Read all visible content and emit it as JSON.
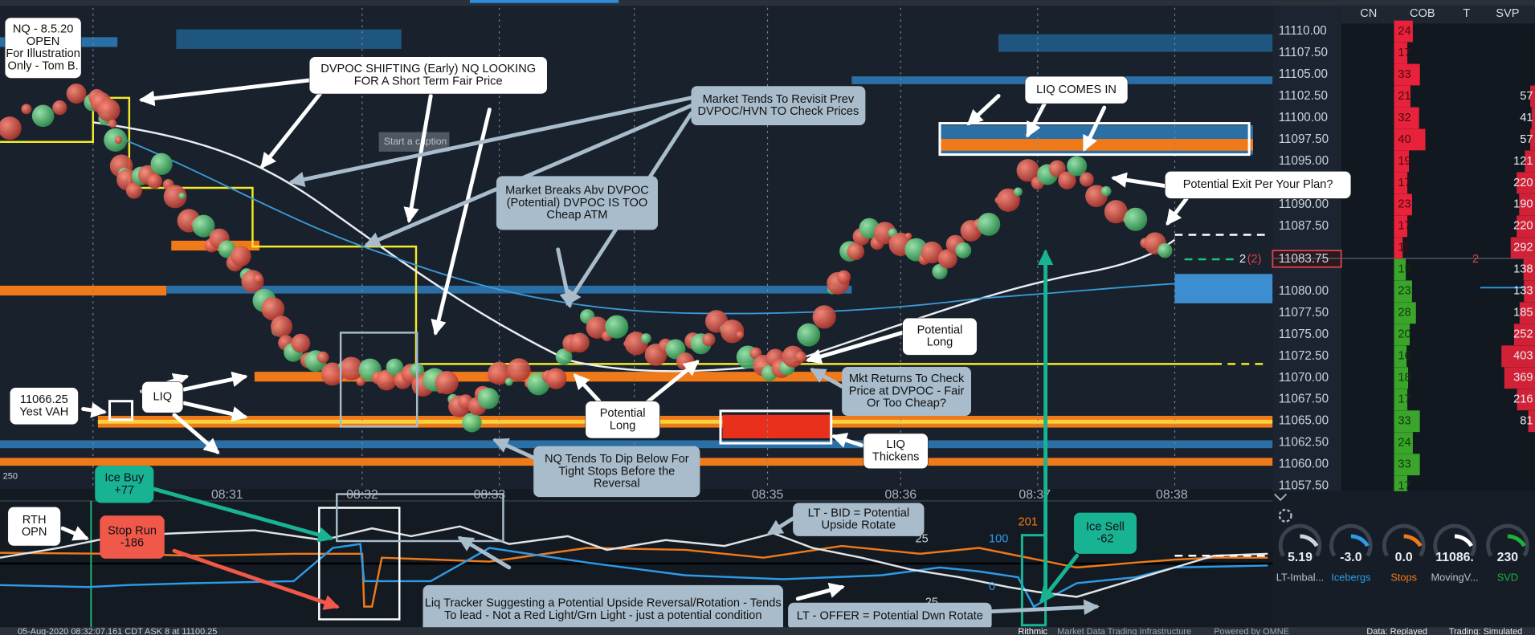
{
  "annotations": [
    {
      "lines": [
        "NQ - 8.5.20",
        "OPEN",
        "For Illustration",
        "Only - Tom B."
      ]
    },
    {
      "lines": [
        "DVPOC SHIFTING (Early) NQ LOOKING",
        "FOR A Short Term Fair Price"
      ]
    },
    {
      "lines": [
        "Market Tends To Revisit Prev",
        "DVPOC/HVN TO Check Prices"
      ]
    },
    {
      "lines": [
        "LIQ COMES IN"
      ]
    },
    {
      "lines": [
        "Market Breaks Abv DVPOC",
        "(Potential) DVPOC IS TOO",
        "Cheap ATM"
      ]
    },
    {
      "lines": [
        "Potential Exit Per Your Plan?"
      ]
    },
    {
      "lines": [
        "Potential",
        "Long"
      ]
    },
    {
      "lines": [
        "Potential",
        "Long"
      ]
    },
    {
      "lines": [
        "Mkt Returns To Check",
        "Price at DVPOC - Fair",
        "Or Too Cheap?"
      ]
    },
    {
      "lines": [
        "11066.25",
        "Yest VAH"
      ]
    },
    {
      "lines": [
        "LIQ"
      ]
    },
    {
      "lines": [
        "LIQ",
        "Thickens"
      ]
    },
    {
      "lines": [
        "NQ Tends To Dip Below For",
        "Tight Stops Before the",
        "Reversal"
      ]
    },
    {
      "lines": [
        "Ice Buy",
        "+77"
      ]
    },
    {
      "lines": [
        "RTH",
        "OPN"
      ]
    },
    {
      "lines": [
        "Stop Run",
        "-186"
      ]
    },
    {
      "lines": [
        "LT - BID = Potential",
        "Upside Rotate"
      ]
    },
    {
      "lines": [
        "Ice Sell",
        "-62"
      ]
    },
    {
      "lines": [
        "Liq Tracker Suggesting a Potential Upside Reversal/Rotation - Tends",
        "To lead - Not a Red Light/Grn Light - just a potential condition"
      ]
    },
    {
      "lines": [
        "LT - OFFER = Potential Dwn Rotate"
      ]
    }
  ],
  "caption_placeholder": "Start a caption",
  "times": [
    "08:31",
    "08:32",
    "08:33",
    "08:35",
    "08:36",
    "08:37",
    "08:38"
  ],
  "ladder": {
    "headers": [
      "CN",
      "COB",
      "T",
      "SVP"
    ],
    "rows": [
      {
        "price": "11110.00",
        "cob": 24,
        "svp": null
      },
      {
        "price": "11107.50",
        "cob": 17,
        "svp": null
      },
      {
        "price": "11105.00",
        "cob": 33,
        "svp": null
      },
      {
        "price": "11102.50",
        "cob": 21,
        "svp": 57
      },
      {
        "price": "11100.00",
        "cob": 32,
        "svp": 41
      },
      {
        "price": "11097.50",
        "cob": 40,
        "svp": 57
      },
      {
        "price": "11095.00",
        "cob": 19,
        "svp": 121
      },
      {
        "price": null,
        "cob": 17,
        "svp": 220
      },
      {
        "price": "11090.00",
        "cob": 23,
        "svp": 190
      },
      {
        "price": "11087.50",
        "cob": 17,
        "svp": 220
      },
      {
        "price": null,
        "cob": 11,
        "svp": 292
      },
      {
        "price": null,
        "cob": 15,
        "svp": 138
      },
      {
        "price": "11080.00",
        "cob": 23,
        "svp": 133
      },
      {
        "price": "11077.50",
        "cob": 28,
        "svp": 185
      },
      {
        "price": "11075.00",
        "cob": 20,
        "svp": 252
      },
      {
        "price": "11072.50",
        "cob": 16,
        "svp": 403
      },
      {
        "price": "11070.00",
        "cob": 18,
        "svp": 369
      },
      {
        "price": "11067.50",
        "cob": 17,
        "svp": 216
      },
      {
        "price": "11065.00",
        "cob": 33,
        "svp": 81
      },
      {
        "price": "11062.50",
        "cob": 24,
        "svp": null
      },
      {
        "price": "11060.00",
        "cob": 33,
        "svp": null
      },
      {
        "price": "11057.50",
        "cob": 17,
        "svp": null
      }
    ],
    "current_price": "11083.75",
    "position": "2",
    "position_paren": "(2)",
    "t_value": "2"
  },
  "pane_labels": [
    "250",
    "25",
    "100",
    "0",
    "25",
    "201"
  ],
  "gauges": [
    {
      "value": "5.19",
      "label": "LT-Imbal..."
    },
    {
      "value": "-3.0",
      "label": "Icebergs"
    },
    {
      "value": "0.0",
      "label": "Stops"
    },
    {
      "value": "11086.",
      "label": "MovingV..."
    },
    {
      "value": "230",
      "label": "SVD"
    }
  ],
  "status_bar": {
    "left": "05-Aug-2020 08:32:07.161 CDT   ASK   8 at 11100.25",
    "brand": "Rithmic",
    "brand_sub": "Market Data Trading Infrastructure",
    "powered": "Powered by OMNE",
    "data": "Data: Replayed",
    "trading": "Trading: Simulated"
  }
}
